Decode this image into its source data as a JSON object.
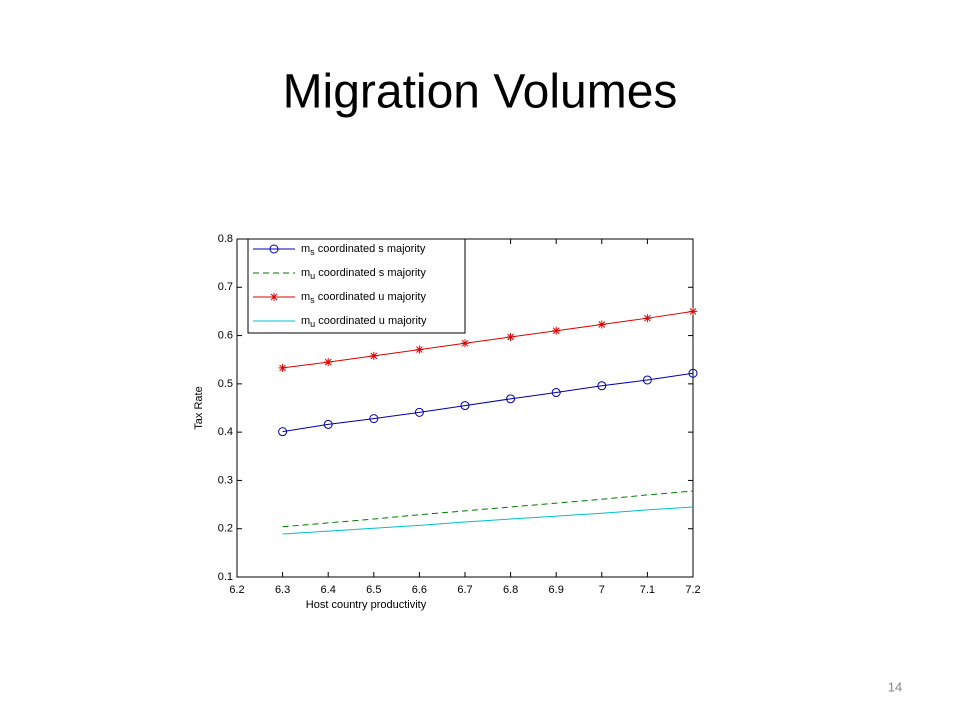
{
  "slide": {
    "title": "Migration Volumes",
    "page_number": 14
  },
  "chart_data": {
    "type": "line",
    "xlabel": "Host country productivity",
    "ylabel": "Tax Rate",
    "x": [
      6.3,
      6.4,
      6.5,
      6.6,
      6.7,
      6.8,
      6.9,
      7.0,
      7.1,
      7.2
    ],
    "xlim": [
      6.2,
      7.2
    ],
    "xticks": [
      6.2,
      6.3,
      6.4,
      6.5,
      6.6,
      6.7,
      6.8,
      6.9,
      7,
      7.1,
      7.2
    ],
    "ylim": [
      0.1,
      0.8
    ],
    "yticks": [
      0.1,
      0.2,
      0.3,
      0.4,
      0.5,
      0.6,
      0.7,
      0.8
    ],
    "grid": false,
    "legend": "upper left",
    "series": [
      {
        "name": "ms coordinated s majority",
        "color": "#0000aa",
        "marker": "circle",
        "dash": "solid",
        "values": [
          0.401,
          0.416,
          0.428,
          0.441,
          0.455,
          0.469,
          0.482,
          0.496,
          0.508,
          0.522
        ]
      },
      {
        "name": "mu coordinated s majority",
        "color": "#007a00",
        "marker": "none",
        "dash": "dashed",
        "values": [
          0.204,
          0.212,
          0.22,
          0.229,
          0.237,
          0.245,
          0.253,
          0.261,
          0.27,
          0.278
        ]
      },
      {
        "name": "ms coordinated u majority",
        "color": "#dd0000",
        "marker": "star",
        "dash": "solid",
        "values": [
          0.533,
          0.545,
          0.558,
          0.571,
          0.584,
          0.597,
          0.61,
          0.623,
          0.636,
          0.65
        ]
      },
      {
        "name": "mu coordinated u majority",
        "color": "#00bfd0",
        "marker": "none",
        "dash": "solid",
        "values": [
          0.189,
          0.195,
          0.201,
          0.207,
          0.214,
          0.22,
          0.226,
          0.232,
          0.239,
          0.245
        ]
      }
    ]
  }
}
